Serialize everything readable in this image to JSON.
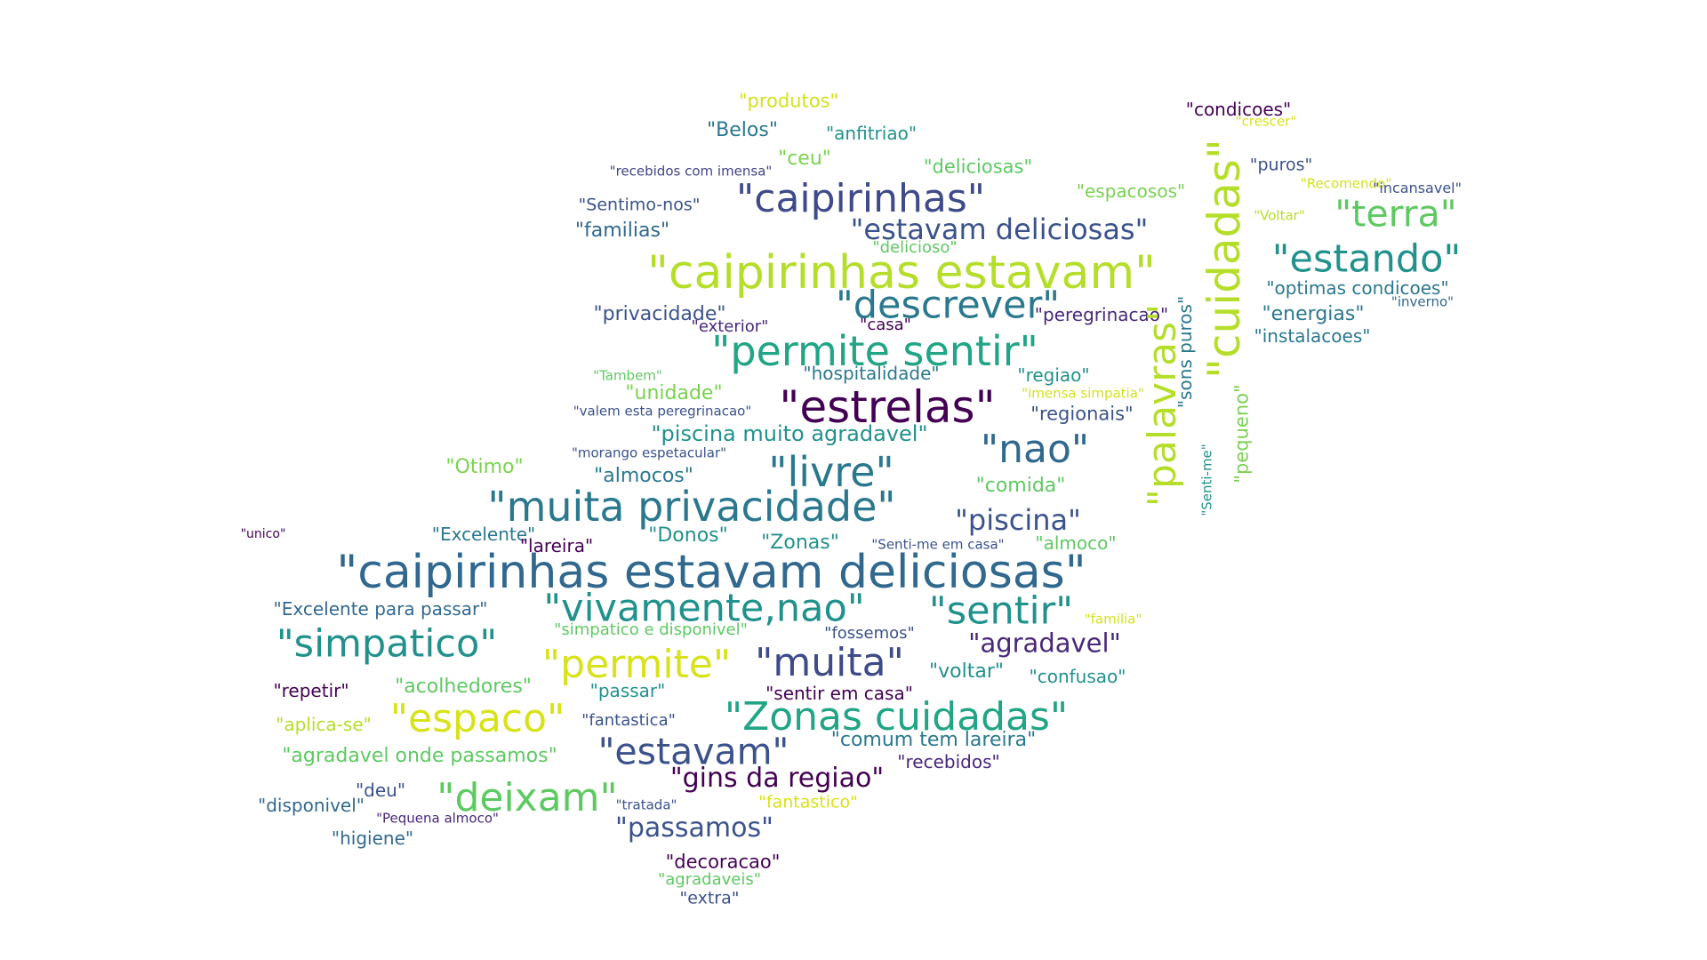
{
  "words": [
    {
      "text": "\"produtos\"",
      "color": "#d2e21b"
    },
    {
      "text": "\"condicoes\"",
      "color": "#440154"
    },
    {
      "text": "\"crescer\"",
      "color": "#d8e219"
    },
    {
      "text": "\"Belos\"",
      "color": "#2a788e"
    },
    {
      "text": "\"anfitriao\"",
      "color": "#21918c"
    },
    {
      "text": "\"ceu\"",
      "color": "#7ad151"
    },
    {
      "text": "\"deliciosas\"",
      "color": "#5ec962"
    },
    {
      "text": "\"puros\"",
      "color": "#3b528b"
    },
    {
      "text": "\"recebidos com imensa\"",
      "color": "#414487"
    },
    {
      "text": "\"Recomendo\"",
      "color": "#d2e21b"
    },
    {
      "text": "\"incansavel\"",
      "color": "#3b528b"
    },
    {
      "text": "\"espacosos\"",
      "color": "#7ad151"
    },
    {
      "text": "\"caipirinhas\"",
      "color": "#3e4a89"
    },
    {
      "text": "\"Sentimo-nos\"",
      "color": "#3b528b"
    },
    {
      "text": "\"Voltar\"",
      "color": "#b5de2b"
    },
    {
      "text": "\"terra\"",
      "color": "#5ec962"
    },
    {
      "text": "\"familias\"",
      "color": "#31688e"
    },
    {
      "text": "\"estavam deliciosas\"",
      "color": "#3b528b"
    },
    {
      "text": "\"delicioso\"",
      "color": "#5ec962"
    },
    {
      "text": "\"caipirinhas estavam\"",
      "color": "#b5de2b"
    },
    {
      "text": "\"estando\"",
      "color": "#21918c"
    },
    {
      "text": "\"cuidadas\"",
      "color": "#b5de2b"
    },
    {
      "text": "\"optimas condicoes\"",
      "color": "#2a788e"
    },
    {
      "text": "\"inverno\"",
      "color": "#31688e"
    },
    {
      "text": "\"descrever\"",
      "color": "#2a788e"
    },
    {
      "text": "\"privacidade\"",
      "color": "#3b528b"
    },
    {
      "text": "\"peregrinacao\"",
      "color": "#482878"
    },
    {
      "text": "\"energias\"",
      "color": "#2a788e"
    },
    {
      "text": "\"exterior\"",
      "color": "#482878"
    },
    {
      "text": "\"casa\"",
      "color": "#440154"
    },
    {
      "text": "\"instalacoes\"",
      "color": "#2a788e"
    },
    {
      "text": "\"palavras\"",
      "color": "#b5de2b"
    },
    {
      "text": "\"sons puros\"",
      "color": "#2a788e"
    },
    {
      "text": "\"permite sentir\"",
      "color": "#21a585"
    },
    {
      "text": "\"Tambem\"",
      "color": "#5ec962"
    },
    {
      "text": "\"hospitalidade\"",
      "color": "#2a788e"
    },
    {
      "text": "\"regiao\"",
      "color": "#21918c"
    },
    {
      "text": "\"unidade\"",
      "color": "#7ad151"
    },
    {
      "text": "\"imensa simpatia\"",
      "color": "#d2e21b"
    },
    {
      "text": "\"pequeno\"",
      "color": "#7ad151"
    },
    {
      "text": "\"estrelas\"",
      "color": "#440154"
    },
    {
      "text": "\"valem esta peregrinacao\"",
      "color": "#3b528b"
    },
    {
      "text": "\"regionais\"",
      "color": "#3b528b"
    },
    {
      "text": "\"piscina muito agradavel\"",
      "color": "#21918c"
    },
    {
      "text": "\"nao\"",
      "color": "#31688e"
    },
    {
      "text": "\"morango espetacular\"",
      "color": "#3b528b"
    },
    {
      "text": "\"Otimo\"",
      "color": "#7ad151"
    },
    {
      "text": "\"livre\"",
      "color": "#2a788e"
    },
    {
      "text": "\"almocos\"",
      "color": "#2a788e"
    },
    {
      "text": "\"comida\"",
      "color": "#5ec962"
    },
    {
      "text": "\"Senti-me\"",
      "color": "#21918c"
    },
    {
      "text": "\"muita privacidade\"",
      "color": "#2a788e"
    },
    {
      "text": "\"piscina\"",
      "color": "#3b528b"
    },
    {
      "text": "\"unico\"",
      "color": "#440154"
    },
    {
      "text": "\"Excelente\"",
      "color": "#2a788e"
    },
    {
      "text": "\"Donos\"",
      "color": "#21918c"
    },
    {
      "text": "\"lareira\"",
      "color": "#440154"
    },
    {
      "text": "\"Zonas\"",
      "color": "#21918c"
    },
    {
      "text": "\"Senti-me em casa\"",
      "color": "#3b528b"
    },
    {
      "text": "\"almoco\"",
      "color": "#5ec962"
    },
    {
      "text": "\"caipirinhas estavam deliciosas\"",
      "color": "#31688e"
    },
    {
      "text": "\"Excelente para passar\"",
      "color": "#31688e"
    },
    {
      "text": "\"vivamente,nao\"",
      "color": "#21918c"
    },
    {
      "text": "\"sentir\"",
      "color": "#21918c"
    },
    {
      "text": "\"familia\"",
      "color": "#d2e21b"
    },
    {
      "text": "\"simpatico\"",
      "color": "#21918c"
    },
    {
      "text": "\"simpatico e disponivel\"",
      "color": "#5ec962"
    },
    {
      "text": "\"fossemos\"",
      "color": "#3b528b"
    },
    {
      "text": "\"agradavel\"",
      "color": "#482878"
    },
    {
      "text": "\"permite\"",
      "color": "#d8e219"
    },
    {
      "text": "\"muita\"",
      "color": "#3e4a89"
    },
    {
      "text": "\"voltar\"",
      "color": "#21918c"
    },
    {
      "text": "\"confusao\"",
      "color": "#21918c"
    },
    {
      "text": "\"repetir\"",
      "color": "#440154"
    },
    {
      "text": "\"acolhedores\"",
      "color": "#5ec962"
    },
    {
      "text": "\"passar\"",
      "color": "#21918c"
    },
    {
      "text": "\"sentir em casa\"",
      "color": "#440154"
    },
    {
      "text": "\"aplica-se\"",
      "color": "#b5de2b"
    },
    {
      "text": "\"espaco\"",
      "color": "#d8e219"
    },
    {
      "text": "\"fantastica\"",
      "color": "#3b528b"
    },
    {
      "text": "\"Zonas cuidadas\"",
      "color": "#21a585"
    },
    {
      "text": "\"agradavel onde passamos\"",
      "color": "#5ec962"
    },
    {
      "text": "\"estavam\"",
      "color": "#3b528b"
    },
    {
      "text": "\"comum tem lareira\"",
      "color": "#2a788e"
    },
    {
      "text": "\"recebidos\"",
      "color": "#482878"
    },
    {
      "text": "\"deu\"",
      "color": "#3b528b"
    },
    {
      "text": "\"deixam\"",
      "color": "#5ec962"
    },
    {
      "text": "\"gins da regiao\"",
      "color": "#440154"
    },
    {
      "text": "\"disponivel\"",
      "color": "#31688e"
    },
    {
      "text": "\"tratada\"",
      "color": "#3b528b"
    },
    {
      "text": "\"fantastico\"",
      "color": "#d8e219"
    },
    {
      "text": "\"Pequena almoco\"",
      "color": "#482878"
    },
    {
      "text": "\"passamos\"",
      "color": "#3b528b"
    },
    {
      "text": "\"higiene\"",
      "color": "#31688e"
    },
    {
      "text": "\"decoracao\"",
      "color": "#440154"
    },
    {
      "text": "\"agradaveis\"",
      "color": "#5ec962"
    },
    {
      "text": "\"extra\"",
      "color": "#3b528b"
    }
  ]
}
